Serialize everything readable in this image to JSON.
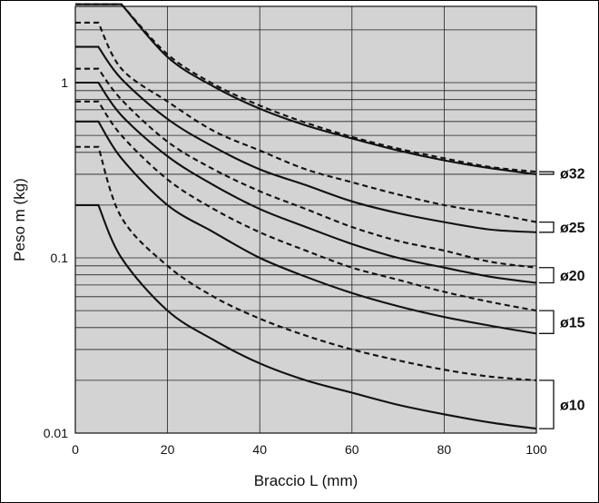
{
  "chart_data": {
    "type": "line",
    "title": "",
    "xlabel": "Braccio L (mm)",
    "ylabel": "Peso m (kg)",
    "xscale": "linear",
    "yscale": "log",
    "xlim": [
      0,
      100
    ],
    "ylim": [
      0.01,
      3
    ],
    "x_ticks": [
      0,
      20,
      40,
      60,
      80,
      100
    ],
    "y_ticks": [
      {
        "value": 0.01,
        "label": "0.01"
      },
      {
        "value": 0.1,
        "label": "0.1"
      },
      {
        "value": 1,
        "label": "1"
      }
    ],
    "grid": true,
    "background": "#d3d3d3",
    "line_color": "#111111",
    "x": [
      0,
      5,
      10,
      20,
      30,
      40,
      50,
      60,
      70,
      80,
      90,
      100
    ],
    "series": [
      {
        "bore": "ø32",
        "style": "dashed",
        "values": [
          2.8,
          2.8,
          2.8,
          1.45,
          0.98,
          0.74,
          0.59,
          0.49,
          0.42,
          0.37,
          0.33,
          0.31
        ]
      },
      {
        "bore": "ø32",
        "style": "solid",
        "values": [
          2.8,
          2.8,
          2.8,
          1.4,
          0.95,
          0.71,
          0.57,
          0.48,
          0.41,
          0.36,
          0.325,
          0.3
        ]
      },
      {
        "bore": "ø25",
        "style": "dashed",
        "values": [
          2.2,
          2.2,
          1.2,
          0.78,
          0.53,
          0.41,
          0.32,
          0.27,
          0.23,
          0.2,
          0.18,
          0.16
        ]
      },
      {
        "bore": "ø25",
        "style": "solid",
        "values": [
          1.6,
          1.6,
          1.05,
          0.62,
          0.43,
          0.32,
          0.26,
          0.21,
          0.18,
          0.16,
          0.145,
          0.14
        ]
      },
      {
        "bore": "ø20",
        "style": "dashed",
        "values": [
          1.2,
          1.2,
          0.8,
          0.46,
          0.32,
          0.24,
          0.19,
          0.15,
          0.125,
          0.11,
          0.095,
          0.088
        ]
      },
      {
        "bore": "ø20",
        "style": "solid",
        "values": [
          1.0,
          1.0,
          0.65,
          0.38,
          0.26,
          0.19,
          0.15,
          0.12,
          0.1,
          0.088,
          0.078,
          0.072
        ]
      },
      {
        "bore": "ø15",
        "style": "dashed",
        "values": [
          0.78,
          0.78,
          0.5,
          0.28,
          0.19,
          0.14,
          0.11,
          0.088,
          0.075,
          0.064,
          0.056,
          0.05
        ]
      },
      {
        "bore": "ø15",
        "style": "solid",
        "values": [
          0.6,
          0.6,
          0.37,
          0.2,
          0.14,
          0.1,
          0.078,
          0.063,
          0.053,
          0.046,
          0.041,
          0.037
        ]
      },
      {
        "bore": "ø10",
        "style": "dashed",
        "values": [
          0.43,
          0.43,
          0.17,
          0.09,
          0.06,
          0.045,
          0.036,
          0.03,
          0.026,
          0.023,
          0.021,
          0.02
        ]
      },
      {
        "bore": "ø10",
        "style": "solid",
        "values": [
          0.2,
          0.2,
          0.1,
          0.05,
          0.034,
          0.025,
          0.02,
          0.017,
          0.0145,
          0.0128,
          0.0115,
          0.0106
        ]
      }
    ],
    "bore_labels": [
      {
        "label": "ø32",
        "range": [
          0.3,
          0.31
        ]
      },
      {
        "label": "ø25",
        "range": [
          0.14,
          0.16
        ]
      },
      {
        "label": "ø20",
        "range": [
          0.072,
          0.088
        ]
      },
      {
        "label": "ø15",
        "range": [
          0.037,
          0.05
        ]
      },
      {
        "label": "ø10",
        "range": [
          0.0106,
          0.02
        ]
      }
    ]
  }
}
